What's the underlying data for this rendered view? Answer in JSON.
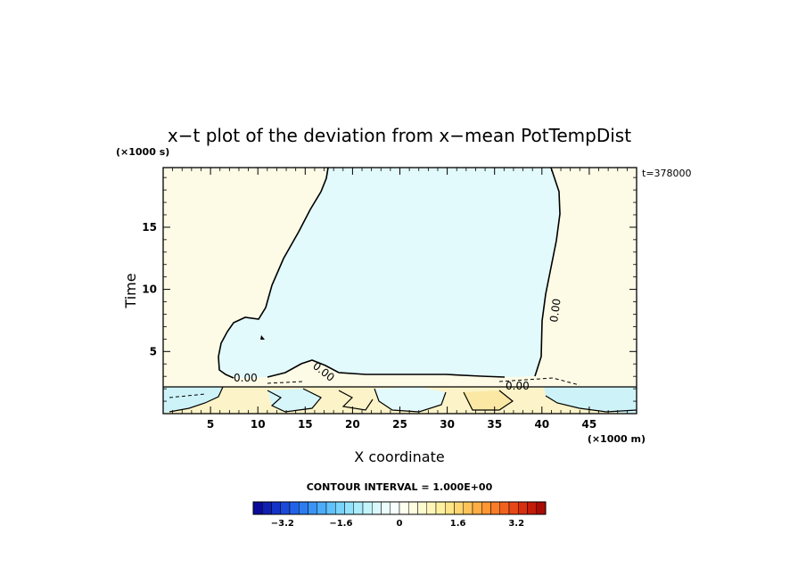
{
  "chart_data": {
    "type": "heatmap",
    "title": "x−t plot of the deviation from x−mean PotTempDist",
    "xlabel": "X coordinate",
    "ylabel": "Time",
    "x_units": "(×1000 m)",
    "y_units": "(×1000 s)",
    "time_stamp": "t=378000",
    "xlim": [
      0,
      50
    ],
    "ylim": [
      0,
      19.8
    ],
    "x_ticks": [
      5,
      10,
      15,
      20,
      25,
      30,
      35,
      40,
      45
    ],
    "x_tick_labels": [
      "5",
      "10",
      "15",
      "20",
      "25",
      "30",
      "35",
      "40",
      "45"
    ],
    "y_ticks": [
      5,
      10,
      15
    ],
    "y_tick_labels": [
      "5",
      "10",
      "15"
    ],
    "contour_interval": "CONTOUR INTERVAL = 1.000E+00",
    "contour_labels": [
      "0.00",
      "0.00",
      "0.00",
      "0.00"
    ],
    "regions": [
      {
        "name": "negative-anomaly",
        "value": -0.3,
        "color": "#e2fafc"
      },
      {
        "name": "positive-anomaly",
        "value": 0.3,
        "color": "#fdfbe6"
      }
    ],
    "colorbar": {
      "ticks": [
        -3.2,
        -1.6,
        0,
        1.6,
        3.2
      ],
      "tick_labels": [
        "−3.2",
        "−1.6",
        "0",
        "1.6",
        "3.2"
      ],
      "range": [
        -4.0,
        4.0
      ],
      "colors": [
        "#0a0a9a",
        "#0f1fb0",
        "#1434c8",
        "#1a4ad8",
        "#2262e6",
        "#2c7cf0",
        "#3a94f6",
        "#4cacfa",
        "#60c2fc",
        "#78d4fc",
        "#92e2fc",
        "#aaecfc",
        "#c2f4fc",
        "#d8f8fc",
        "#eafcfc",
        "#f6fefe",
        "#fefef0",
        "#fefce0",
        "#fefad0",
        "#fef6b8",
        "#fef0a0",
        "#fee488",
        "#fed670",
        "#fec458",
        "#feae44",
        "#fe9634",
        "#fa7c28",
        "#f2621e",
        "#e84816",
        "#d8300e",
        "#c41c08",
        "#a80c04"
      ]
    }
  }
}
